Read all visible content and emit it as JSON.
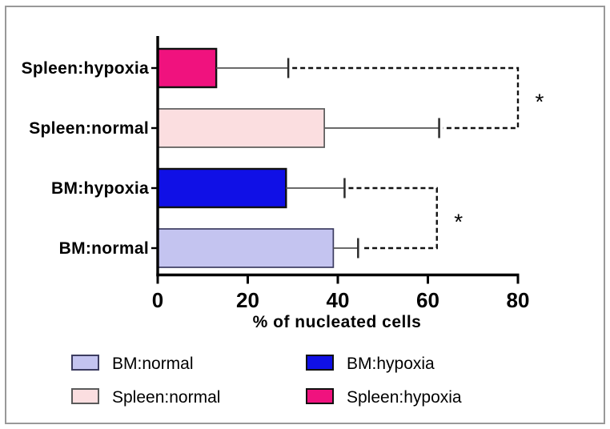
{
  "figure": {
    "background": "#ffffff",
    "border_color": "#999999"
  },
  "chart_data": {
    "type": "bar",
    "orientation": "horizontal",
    "title": "",
    "xlabel": "% of nucleated cells",
    "xlim": [
      0,
      80
    ],
    "xticks": [
      "0",
      "20",
      "40",
      "60",
      "80"
    ],
    "xtick_values": [
      0,
      20,
      40,
      60,
      80
    ],
    "grid": false,
    "categories": [
      "Spleen:hypoxia",
      "Spleen:normal",
      "BM:hypoxia",
      "BM:normal"
    ],
    "values": [
      13,
      37,
      28.5,
      39
    ],
    "error_upper": [
      29,
      62.5,
      41.5,
      44.5
    ],
    "bar_fill_colors": [
      "#F0127E",
      "#FBDEE0",
      "#1010E6",
      "#C4C4F0"
    ],
    "bar_border_colors": [
      "#111111",
      "#5A5A5A",
      "#111111",
      "#3C3C60"
    ],
    "bar_border_widths": [
      2.4,
      1.7,
      2.4,
      1.7
    ],
    "error_bar_color": "#555555",
    "error_cap_color": "#2B2B2B",
    "significance": [
      {
        "from": "Spleen:hypoxia",
        "to": "Spleen:normal",
        "at_value": 80,
        "label": "*"
      },
      {
        "from": "BM:hypoxia",
        "to": "BM:normal",
        "at_value": 62,
        "label": "*"
      }
    ],
    "bracket_color": "#111111",
    "axis_color": "#000000",
    "legend": {
      "position": "bottom",
      "entries": [
        {
          "label": "BM:normal",
          "fill": "#C4C4F0",
          "border": "#3C3C60"
        },
        {
          "label": "Spleen:normal",
          "fill": "#FBDEE0",
          "border": "#5A5A5A"
        },
        {
          "label": "BM:hypoxia",
          "fill": "#1010E6",
          "border": "#111111"
        },
        {
          "label": "Spleen:hypoxia",
          "fill": "#F0127E",
          "border": "#111111"
        }
      ]
    }
  }
}
